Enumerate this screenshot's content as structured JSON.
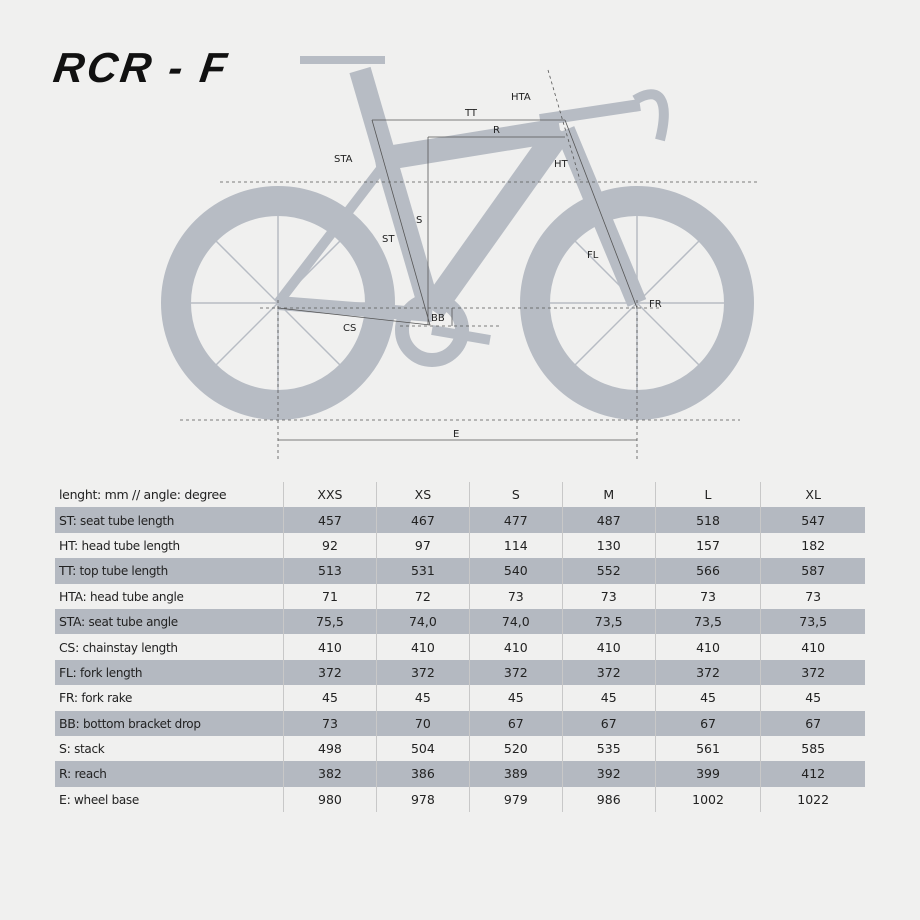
{
  "title": "RCR - F",
  "diagram": {
    "labels": {
      "TT": "TT",
      "R": "R",
      "HTA": "HTA",
      "STA": "STA",
      "HT": "HT",
      "S": "S",
      "ST": "ST",
      "FL": "FL",
      "FR": "FR",
      "BB": "BB",
      "CS": "CS",
      "E": "E"
    },
    "colors": {
      "bike": "#b7bcc4",
      "lines": "#555555"
    }
  },
  "table": {
    "header": "lenght: mm // angle: degree",
    "sizes": [
      "XXS",
      "XS",
      "S",
      "M",
      "L",
      "XL"
    ],
    "rows": [
      {
        "code": "ST:",
        "name": "seat tube length",
        "values": [
          "457",
          "467",
          "477",
          "487",
          "518",
          "547"
        ]
      },
      {
        "code": "HT:",
        "name": "head tube length",
        "values": [
          "92",
          "97",
          "114",
          "130",
          "157",
          "182"
        ]
      },
      {
        "code": "TT:",
        "name": "top tube length",
        "values": [
          "513",
          "531",
          "540",
          "552",
          "566",
          "587"
        ]
      },
      {
        "code": "HTA:",
        "name": "head tube angle",
        "values": [
          "71",
          "72",
          "73",
          "73",
          "73",
          "73"
        ]
      },
      {
        "code": "STA:",
        "name": "seat tube angle",
        "values": [
          "75,5",
          "74,0",
          "74,0",
          "73,5",
          "73,5",
          "73,5"
        ]
      },
      {
        "code": "CS:",
        "name": "chainstay length",
        "values": [
          "410",
          "410",
          "410",
          "410",
          "410",
          "410"
        ]
      },
      {
        "code": "FL:",
        "name": "fork length",
        "values": [
          "372",
          "372",
          "372",
          "372",
          "372",
          "372"
        ]
      },
      {
        "code": "FR:",
        "name": "fork rake",
        "values": [
          "45",
          "45",
          "45",
          "45",
          "45",
          "45"
        ]
      },
      {
        "code": "BB:",
        "name": "bottom bracket drop",
        "values": [
          "73",
          "70",
          "67",
          "67",
          "67",
          "67"
        ]
      },
      {
        "code": "S:",
        "name": "stack",
        "values": [
          "498",
          "504",
          "520",
          "535",
          "561",
          "585"
        ]
      },
      {
        "code": "R:",
        "name": "reach",
        "values": [
          "382",
          "386",
          "389",
          "392",
          "399",
          "412"
        ]
      },
      {
        "code": "E:",
        "name": "wheel base",
        "values": [
          "980",
          "978",
          "979",
          "986",
          "1002",
          "1022"
        ]
      }
    ],
    "stripe_color": "#b4b9c1"
  }
}
